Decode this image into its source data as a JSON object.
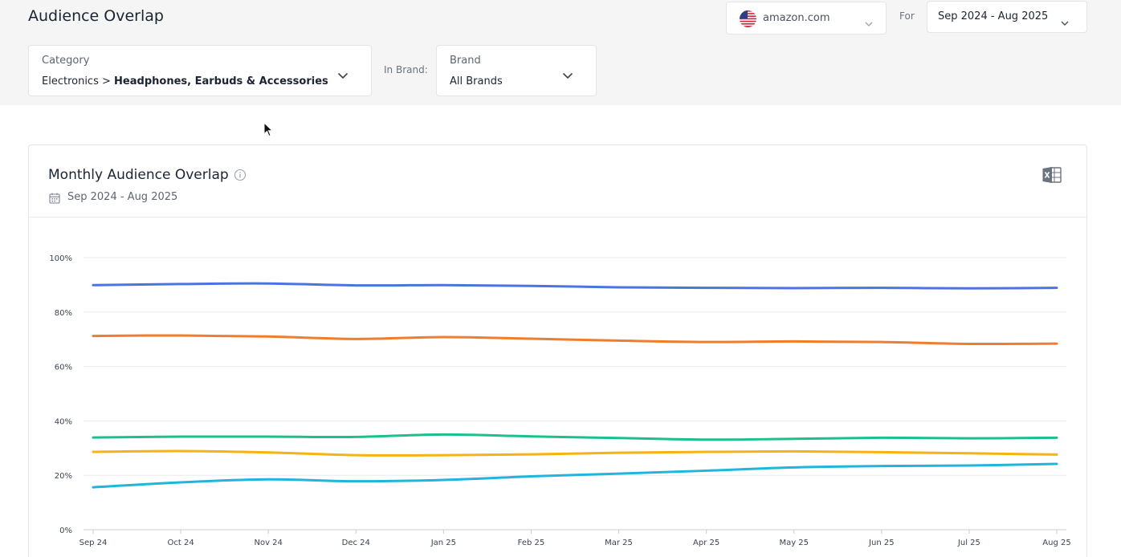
{
  "header": {
    "title": "Audience Overlap",
    "site": "amazon.com",
    "for_label": "For",
    "date_range": "Sep 2024 - Aug 2025"
  },
  "filters": {
    "category_label": "Category",
    "category_parent": "Electronics",
    "category_separator": ">",
    "category_child": "Headphones, Earbuds & Accessories",
    "in_brand_label": "In Brand:",
    "brand_label": "Brand",
    "brand_value": "All Brands"
  },
  "card": {
    "title": "Monthly Audience Overlap",
    "date_range": "Sep 2024 - Aug 2025"
  },
  "icons": {
    "site_flag": "us-flag-icon",
    "info": "info-icon",
    "calendar": "calendar-icon",
    "export": "excel-export-icon",
    "dropdown": "chevron-down-icon"
  },
  "chart_data": {
    "type": "line",
    "title": "",
    "xlabel": "",
    "ylabel": "",
    "ylim": [
      0,
      100
    ],
    "y_ticks": [
      "0%",
      "20%",
      "40%",
      "60%",
      "80%",
      "100%"
    ],
    "y_tick_values": [
      0,
      20,
      40,
      60,
      80,
      100
    ],
    "grid": true,
    "legend": "none",
    "x": [
      "Sep 24",
      "Oct 24",
      "Nov 24",
      "Dec 24",
      "Jan 25",
      "Feb 25",
      "Mar 25",
      "Apr 25",
      "May 25",
      "Jun 25",
      "Jul 25",
      "Aug 25"
    ],
    "series": [
      {
        "color": "#4a74e0",
        "values": [
          89.9,
          90.3,
          90.5,
          89.8,
          89.9,
          89.6,
          89.1,
          88.9,
          88.8,
          88.9,
          88.7,
          88.9
        ]
      },
      {
        "color": "#ef7d2e",
        "values": [
          71.2,
          71.4,
          71.0,
          70.1,
          70.8,
          70.2,
          69.5,
          69.0,
          69.2,
          69.0,
          68.3,
          68.4
        ]
      },
      {
        "color": "#1cc08c",
        "values": [
          33.9,
          34.2,
          34.2,
          34.1,
          35.0,
          34.3,
          33.7,
          33.1,
          33.4,
          33.8,
          33.6,
          33.8
        ]
      },
      {
        "color": "#f6b312",
        "values": [
          28.6,
          28.9,
          28.4,
          27.4,
          27.4,
          27.7,
          28.3,
          28.6,
          28.8,
          28.5,
          28.1,
          27.6
        ]
      },
      {
        "color": "#20b6dc",
        "values": [
          15.6,
          17.4,
          18.5,
          17.8,
          18.3,
          19.6,
          20.6,
          21.7,
          22.9,
          23.4,
          23.6,
          24.2
        ]
      }
    ]
  }
}
